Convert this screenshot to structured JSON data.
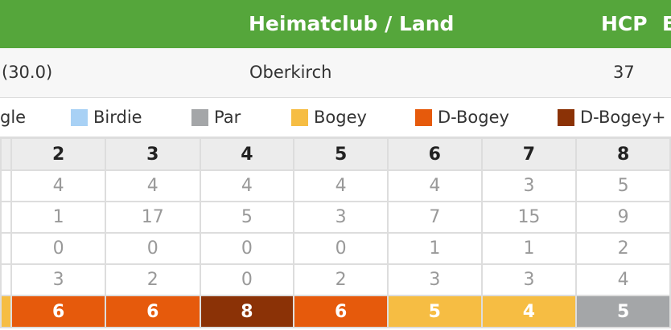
{
  "header": {
    "club_label": "Heimatclub / Land",
    "hcp_label": "HCP",
    "extra_label": "E"
  },
  "player": {
    "hcp_exact": "(30.0)",
    "club": "Oberkirch",
    "hcp": "37"
  },
  "legend": [
    {
      "label": "gle",
      "color": ""
    },
    {
      "label": "Birdie",
      "color": "#a8d1f5"
    },
    {
      "label": "Par",
      "color": "#a4a6a8"
    },
    {
      "label": "Bogey",
      "color": "#f6bd43"
    },
    {
      "label": "D-Bogey",
      "color": "#e65a0c"
    },
    {
      "label": "D-Bogey+",
      "color": "#8b3206"
    }
  ],
  "holes": [
    "2",
    "3",
    "4",
    "5",
    "6",
    "7",
    "8"
  ],
  "rows": [
    {
      "name": "par-row",
      "values": [
        "4",
        "4",
        "4",
        "4",
        "4",
        "3",
        "5"
      ]
    },
    {
      "name": "hcp-row",
      "values": [
        "1",
        "17",
        "5",
        "3",
        "7",
        "15",
        "9"
      ]
    },
    {
      "name": "strokes-row",
      "values": [
        "0",
        "0",
        "0",
        "0",
        "1",
        "1",
        "2"
      ]
    },
    {
      "name": "points-row",
      "values": [
        "3",
        "2",
        "0",
        "2",
        "3",
        "3",
        "4"
      ]
    }
  ],
  "scores": [
    {
      "value": "6",
      "color": "#e65a0c"
    },
    {
      "value": "6",
      "color": "#e65a0c"
    },
    {
      "value": "8",
      "color": "#8b3206"
    },
    {
      "value": "6",
      "color": "#e65a0c"
    },
    {
      "value": "5",
      "color": "#f6bd43"
    },
    {
      "value": "4",
      "color": "#f6bd43"
    },
    {
      "value": "5",
      "color": "#a4a6a8"
    }
  ],
  "score_first_partial_color": "#f6bd43"
}
